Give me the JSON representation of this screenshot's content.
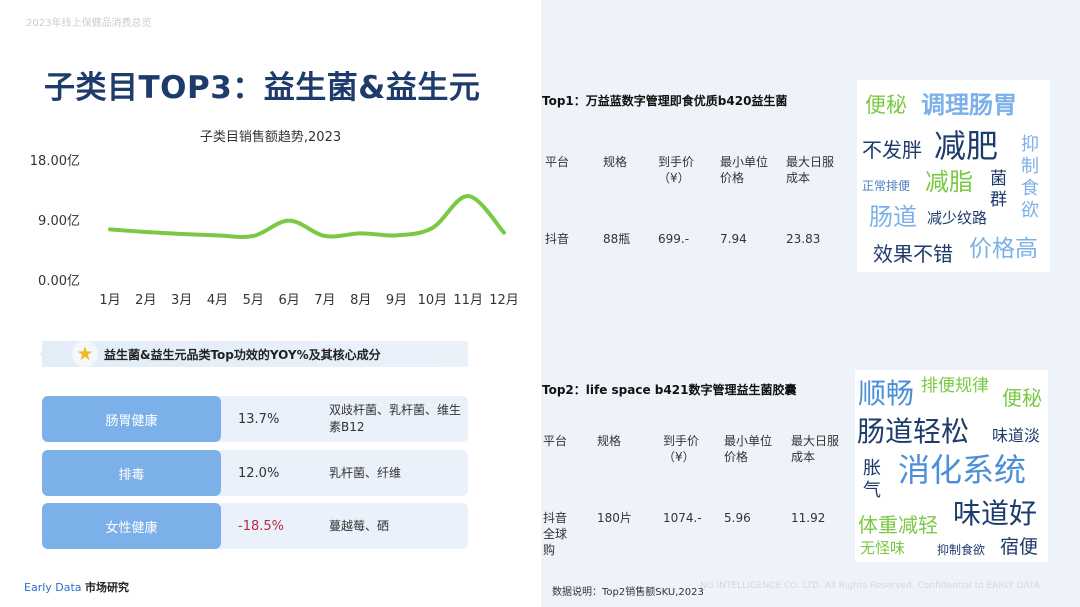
{
  "header_note": "2023年线上保健品消费总览",
  "page_title": "子类目TOP3：益生菌&益生元",
  "chart_data": {
    "type": "line",
    "title": "子类目销售额趋势,2023",
    "categories": [
      "1月",
      "2月",
      "3月",
      "4月",
      "5月",
      "6月",
      "7月",
      "8月",
      "9月",
      "10月",
      "11月",
      "12月"
    ],
    "values": [
      7.6,
      7.2,
      6.9,
      6.7,
      6.6,
      8.9,
      6.6,
      7.0,
      6.7,
      7.8,
      12.6,
      7.1
    ],
    "yticks": [
      "18.00亿",
      "9.00亿",
      "0.00亿"
    ],
    "ytick_values": [
      18,
      9,
      0
    ],
    "ylim": [
      0,
      18
    ],
    "color": "#7ac943",
    "grid": false
  },
  "efficacy_banner": "益生菌&益生元品类Top功效的YOY%及其核心成分",
  "efficacy_rows": [
    {
      "label": "肠胃健康",
      "yoy": "13.7%",
      "ingredients": "双歧杆菌、乳杆菌、维生素B12"
    },
    {
      "label": "排毒",
      "yoy": "12.0%",
      "ingredients": "乳杆菌、纤维"
    },
    {
      "label": "女性健康",
      "yoy": "-18.5%",
      "ingredients": "蔓越莓、硒"
    }
  ],
  "footer": {
    "brand": "Early Data",
    "brand_cn": "市场研究",
    "copyright": "NG INTELLIGENCE CO. LTD. All Rights Reserved. Confidential to EARLY DATA",
    "note": "数据说明：Top2销售额SKU,2023"
  },
  "products": [
    {
      "title": "Top1：万益蓝数字管理即食优质b420益生菌",
      "headers": [
        "平台",
        "规格",
        "到手价（¥）",
        "最小单位价格",
        "最大日服成本"
      ],
      "values": [
        "抖音",
        "88瓶",
        "699.-",
        "7.94",
        "23.83"
      ],
      "cloud_words": [
        "便秘",
        "调理肠胃",
        "不发胖",
        "减肥",
        "抑制食欲",
        "正常排便",
        "减脂",
        "菌群",
        "肠道",
        "减少纹路",
        "效果不错",
        "价格高"
      ]
    },
    {
      "title": "Top2：life space b421数字管理益生菌胶囊",
      "headers": [
        "平台",
        "规格",
        "到手价（¥）",
        "最小单位价格",
        "最大日服成本"
      ],
      "values": [
        "抖音全球购",
        "180片",
        "1074.-",
        "5.96",
        "11.92"
      ],
      "cloud_words": [
        "顺畅",
        "排便规律",
        "便秘",
        "肠道轻松",
        "味道淡",
        "胀气",
        "消化系统",
        "体重减轻",
        "味道好",
        "无怪味",
        "抑制食欲",
        "宿便"
      ]
    }
  ],
  "colors": {
    "title": "#1d3b6b",
    "accent_blue": "#7bb1e8",
    "line_green": "#7ac943",
    "negative": "#c0283a"
  }
}
